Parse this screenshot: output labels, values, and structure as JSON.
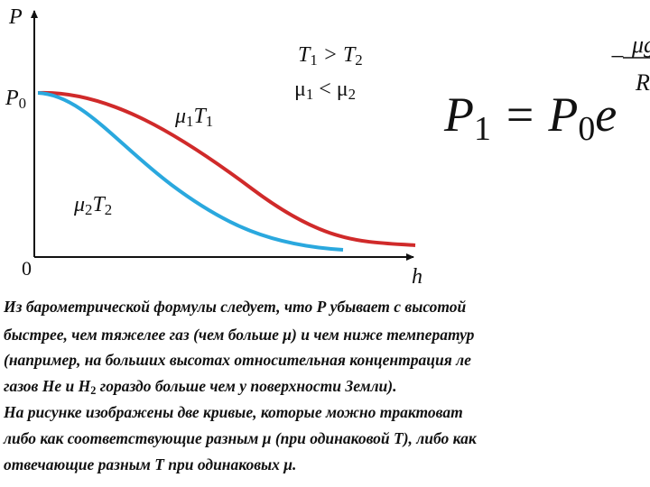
{
  "graph": {
    "y_label": "P",
    "p0": [
      "P",
      "0"
    ],
    "origin": "0",
    "x_label": "h",
    "curve_1": [
      "μ",
      "1",
      "T",
      "1"
    ],
    "curve_2": [
      "μ",
      "2",
      "T",
      "2"
    ],
    "condition_1": [
      "T",
      "1",
      " > T",
      "2"
    ],
    "condition_2": [
      "μ",
      "1",
      " < μ",
      "2"
    ]
  },
  "formula": {
    "main": [
      "P",
      "1",
      " = P",
      "0",
      "e"
    ],
    "exponent_sign": "−",
    "exponent_numerator": "μg",
    "exponent_denominator": "R"
  },
  "text": {
    "lines": [
      [
        "Из барометрической формулы следует, что Р убывает с высотой"
      ],
      [
        "быстрее, чем тяжелее газ (чем больше μ) и чем ниже температур"
      ],
      [
        "(например, на больших высотах относительная  концентрация ле"
      ],
      [
        "газов Не и Н",
        "2",
        " гораздо больше чем у поверхности Земли)."
      ],
      [
        "  На рисунке  изображены две кривые, которые можно трактоват"
      ],
      [
        "либо как соответствующие разным μ (при одинаковой Т), либо как"
      ],
      [
        "отвечающие разным Т при одинаковых μ."
      ]
    ]
  }
}
